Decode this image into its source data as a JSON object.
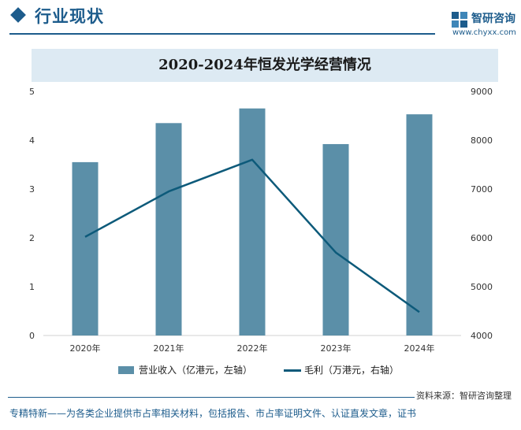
{
  "header": {
    "section_title": "行业现状",
    "brand_name": "智研咨询",
    "brand_url": "www.chyxx.com"
  },
  "colors": {
    "accent": "#1d5c8c",
    "bar": "#5b8fa8",
    "line": "#0d5a7a",
    "title_bar": "#ddeaf3"
  },
  "chart_data": {
    "type": "bar",
    "title": "2020-2024年恒发光学经营情况",
    "categories": [
      "2020年",
      "2021年",
      "2022年",
      "2023年",
      "2024年"
    ],
    "series": [
      {
        "name": "营业收入（亿港元，左轴）",
        "type": "bar",
        "axis": "left",
        "values": [
          3.55,
          4.35,
          4.65,
          3.92,
          4.53
        ]
      },
      {
        "name": "毛利（万港元，右轴）",
        "type": "line",
        "axis": "right",
        "values": [
          6020,
          6950,
          7600,
          5700,
          4480
        ]
      }
    ],
    "y_left": {
      "ylim": [
        0,
        5
      ],
      "ticks": [
        "0",
        "1",
        "2",
        "3",
        "4",
        "5"
      ]
    },
    "y_right": {
      "ylim": [
        4000,
        9000
      ],
      "ticks": [
        "4000",
        "5000",
        "6000",
        "7000",
        "8000",
        "9000"
      ]
    },
    "grid": false,
    "legend": "bottom"
  },
  "footer": {
    "source": "资料来源：智研咨询整理",
    "tagline": "专精特新——为各类企业提供市占率相关材料，包括报告、市占率证明文件、认证直发文章，证书"
  }
}
